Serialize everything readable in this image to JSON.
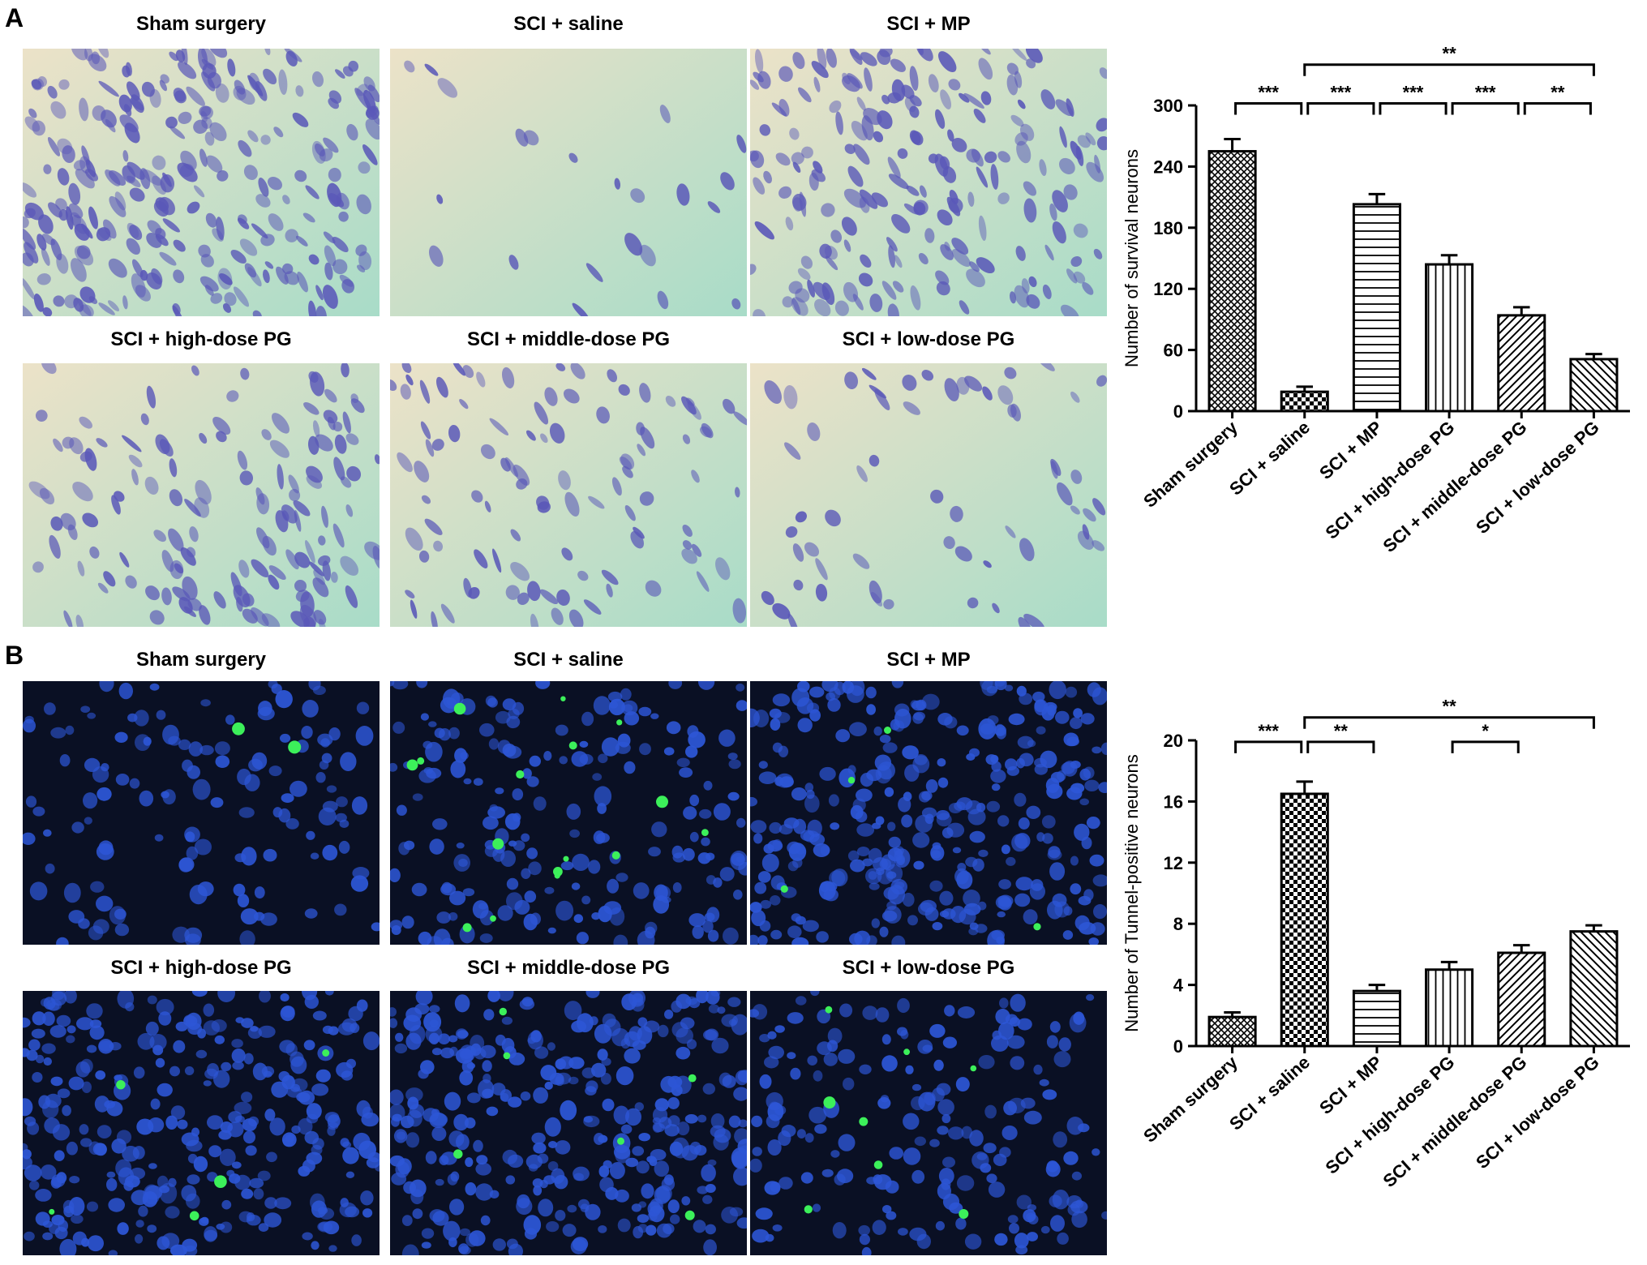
{
  "panels": [
    {
      "letter": "A",
      "micrographs": [
        {
          "title": "Sham surgery",
          "stain": "nissl",
          "density": 260,
          "cells": "dense"
        },
        {
          "title": "SCI + saline",
          "stain": "nissl",
          "density": 22,
          "cells": "sparse"
        },
        {
          "title": "SCI + MP",
          "stain": "nissl",
          "density": 200,
          "cells": "dense"
        },
        {
          "title": "SCI + high-dose PG",
          "stain": "nissl",
          "density": 140,
          "cells": "medium"
        },
        {
          "title": "SCI + middle-dose PG",
          "stain": "nissl",
          "density": 100,
          "cells": "medium"
        },
        {
          "title": "SCI + low-dose PG",
          "stain": "nissl",
          "density": 60,
          "cells": "sparse"
        }
      ]
    },
    {
      "letter": "B",
      "micrographs": [
        {
          "title": "Sham surgery",
          "stain": "tunel",
          "density": 130,
          "green": 2
        },
        {
          "title": "SCI + saline",
          "stain": "tunel",
          "density": 200,
          "green": 16
        },
        {
          "title": "SCI + MP",
          "stain": "tunel",
          "density": 320,
          "green": 4
        },
        {
          "title": "SCI + high-dose PG",
          "stain": "tunel",
          "density": 300,
          "green": 5
        },
        {
          "title": "SCI + middle-dose PG",
          "stain": "tunel",
          "density": 320,
          "green": 6
        },
        {
          "title": "SCI + low-dose PG",
          "stain": "tunel",
          "density": 180,
          "green": 8
        }
      ]
    }
  ],
  "colors": {
    "nissl_cell": "#5a58b8",
    "nissl_bg_left": "#ece2c8",
    "nissl_bg_right": "#a8dcc8",
    "tunel_nucleus": "#2d56d6",
    "tunel_bg": "#0a1024",
    "tunel_green": "#3cf05a"
  },
  "chart_data": [
    {
      "type": "bar",
      "ylabel": "Number of survival neurons",
      "ylim": [
        0,
        300
      ],
      "yticks": [
        "0",
        "60",
        "120",
        "180",
        "240",
        "300"
      ],
      "categories": [
        "Sham surgery",
        "SCI + saline",
        "SCI + MP",
        "SCI + high-dose PG",
        "SCI + middle-dose PG",
        "SCI + low-dose PG"
      ],
      "values": [
        255,
        19,
        203,
        144,
        94,
        51
      ],
      "errors": [
        12,
        5,
        10,
        9,
        8,
        5
      ],
      "patterns": [
        "cross",
        "checker",
        "hlines",
        "vlines",
        "diag",
        "diag2"
      ],
      "significance": [
        {
          "from": 0,
          "to": 1,
          "label": "***",
          "level": 302
        },
        {
          "from": 1,
          "to": 2,
          "label": "***",
          "level": 302
        },
        {
          "from": 2,
          "to": 3,
          "label": "***",
          "level": 302
        },
        {
          "from": 3,
          "to": 4,
          "label": "***",
          "level": 302
        },
        {
          "from": 4,
          "to": 5,
          "label": "**",
          "level": 302
        },
        {
          "from": 1,
          "to": 5,
          "label": "**",
          "level": 340
        }
      ]
    },
    {
      "type": "bar",
      "ylabel": "Number of Tunnel-positive neurons",
      "ylim": [
        0,
        20
      ],
      "yticks": [
        "0",
        "4",
        "8",
        "12",
        "16",
        "20"
      ],
      "categories": [
        "Sham surgery",
        "SCI + saline",
        "SCI + MP",
        "SCI + high-dose PG",
        "SCI + middle-dose PG",
        "SCI + low-dose PG"
      ],
      "values": [
        1.9,
        16.5,
        3.6,
        5.0,
        6.1,
        7.5
      ],
      "errors": [
        0.3,
        0.8,
        0.4,
        0.5,
        0.5,
        0.4
      ],
      "patterns": [
        "cross",
        "checker",
        "hlines",
        "vlines",
        "diag",
        "diag2"
      ],
      "significance": [
        {
          "from": 0,
          "to": 1,
          "label": "***",
          "level": 19.9
        },
        {
          "from": 1,
          "to": 2,
          "label": "**",
          "level": 19.9
        },
        {
          "from": 3,
          "to": 4,
          "label": "*",
          "level": 19.9
        },
        {
          "from": 1,
          "to": 5,
          "label": "**",
          "level": 21.5
        }
      ]
    }
  ]
}
